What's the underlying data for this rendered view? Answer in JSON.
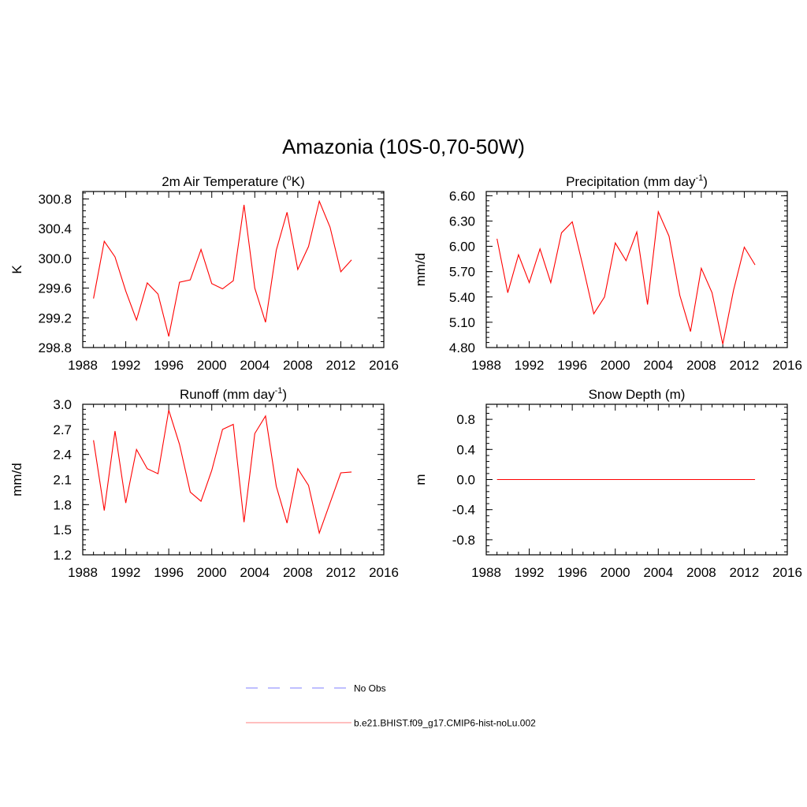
{
  "figure": {
    "title": "Amazonia (10S-0,70-50W)"
  },
  "colors": {
    "model_line": "#ff0000",
    "obs_line": "#9999ff",
    "legend_model": "#ff9999",
    "axis": "#000000"
  },
  "legend": {
    "items": [
      {
        "label": "No Obs",
        "style": "dashed",
        "color": "#9999ff"
      },
      {
        "label": "b.e21.BHIST.f09_g17.CMIP6-hist-noLu.002",
        "style": "solid",
        "color": "#ff9999"
      }
    ]
  },
  "chart_data": [
    {
      "type": "line",
      "title_main": "2m Air Temperature (",
      "title_sup": "o",
      "title_end": "K)",
      "ylabel": "K",
      "xlim": [
        1988,
        2016
      ],
      "xticks": [
        1988,
        1992,
        1996,
        2000,
        2004,
        2008,
        2012,
        2016
      ],
      "ylim": [
        298.8,
        300.9
      ],
      "yticks": [
        "298.8",
        "299.2",
        "299.6",
        "300.0",
        "300.4",
        "300.8"
      ],
      "x": [
        1989,
        1990,
        1991,
        1992,
        1993,
        1994,
        1995,
        1996,
        1997,
        1998,
        1999,
        2000,
        2001,
        2002,
        2003,
        2004,
        2005,
        2006,
        2007,
        2008,
        2009,
        2010,
        2011,
        2012,
        2013
      ],
      "series": [
        {
          "values": [
            299.46,
            300.23,
            300.02,
            299.56,
            299.17,
            299.67,
            299.52,
            298.95,
            299.68,
            299.71,
            300.12,
            299.66,
            299.59,
            299.7,
            300.72,
            299.6,
            299.14,
            300.11,
            300.62,
            299.85,
            300.16,
            300.77,
            300.42,
            299.82,
            299.98
          ]
        }
      ]
    },
    {
      "type": "line",
      "title_main": "Precipitation (mm day",
      "title_sup": "-1",
      "title_end": ")",
      "ylabel": "mm/d",
      "xlim": [
        1988,
        2016
      ],
      "xticks": [
        1988,
        1992,
        1996,
        2000,
        2004,
        2008,
        2012,
        2016
      ],
      "ylim": [
        4.8,
        6.65
      ],
      "yticks": [
        "4.80",
        "5.10",
        "5.40",
        "5.70",
        "6.00",
        "6.30",
        "6.60"
      ],
      "x": [
        1989,
        1990,
        1991,
        1992,
        1993,
        1994,
        1995,
        1996,
        1997,
        1998,
        1999,
        2000,
        2001,
        2002,
        2003,
        2004,
        2005,
        2006,
        2007,
        2008,
        2009,
        2010,
        2011,
        2012,
        2013
      ],
      "series": [
        {
          "values": [
            6.09,
            5.45,
            5.9,
            5.57,
            5.97,
            5.57,
            6.16,
            6.29,
            5.76,
            5.2,
            5.4,
            6.04,
            5.83,
            6.17,
            5.31,
            6.41,
            6.12,
            5.42,
            4.99,
            5.74,
            5.45,
            4.84,
            5.48,
            5.99,
            5.78
          ]
        }
      ]
    },
    {
      "type": "line",
      "title_main": "Runoff (mm day",
      "title_sup": "-1",
      "title_end": ")",
      "ylabel": "mm/d",
      "xlim": [
        1988,
        2016
      ],
      "xticks": [
        1988,
        1992,
        1996,
        2000,
        2004,
        2008,
        2012,
        2016
      ],
      "ylim": [
        1.2,
        3.0
      ],
      "yticks": [
        "1.2",
        "1.5",
        "1.8",
        "2.1",
        "2.4",
        "2.7",
        "3.0"
      ],
      "x": [
        1989,
        1990,
        1991,
        1992,
        1993,
        1994,
        1995,
        1996,
        1997,
        1998,
        1999,
        2000,
        2001,
        2002,
        2003,
        2004,
        2005,
        2006,
        2007,
        2008,
        2009,
        2010,
        2011,
        2012,
        2013
      ],
      "series": [
        {
          "values": [
            2.57,
            1.73,
            2.68,
            1.82,
            2.46,
            2.23,
            2.17,
            2.93,
            2.52,
            1.95,
            1.84,
            2.21,
            2.7,
            2.76,
            1.59,
            2.65,
            2.86,
            2.02,
            1.58,
            2.23,
            2.03,
            1.46,
            1.82,
            2.18,
            2.19
          ]
        }
      ]
    },
    {
      "type": "line",
      "title_main": "Snow Depth (m)",
      "title_sup": "",
      "title_end": "",
      "ylabel": "m",
      "xlim": [
        1988,
        2016
      ],
      "xticks": [
        1988,
        1992,
        1996,
        2000,
        2004,
        2008,
        2012,
        2016
      ],
      "ylim": [
        -1.0,
        1.0
      ],
      "yticks": [
        "-0.8",
        "-0.4",
        "0.0",
        "0.4",
        "0.8"
      ],
      "x": [
        1989,
        1990,
        1991,
        1992,
        1993,
        1994,
        1995,
        1996,
        1997,
        1998,
        1999,
        2000,
        2001,
        2002,
        2003,
        2004,
        2005,
        2006,
        2007,
        2008,
        2009,
        2010,
        2011,
        2012,
        2013
      ],
      "series": [
        {
          "values": [
            0,
            0,
            0,
            0,
            0,
            0,
            0,
            0,
            0,
            0,
            0,
            0,
            0,
            0,
            0,
            0,
            0,
            0,
            0,
            0,
            0,
            0,
            0,
            0,
            0
          ]
        }
      ]
    }
  ]
}
